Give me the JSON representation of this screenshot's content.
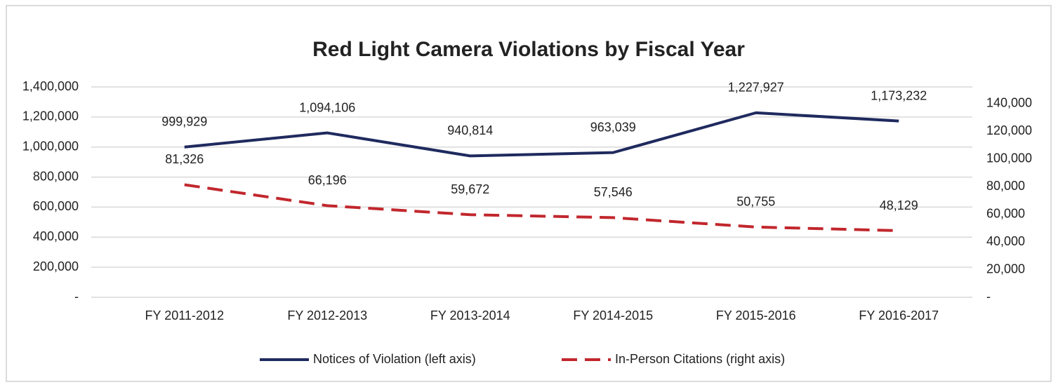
{
  "chart_data": {
    "type": "line",
    "title": "Red Light Camera Violations by Fiscal Year",
    "categories": [
      "FY 2011-2012",
      "FY 2012-2013",
      "FY 2013-2014",
      "FY 2014-2015",
      "FY 2015-2016",
      "FY 2016-2017"
    ],
    "series": [
      {
        "name": "Notices of Violation (left axis)",
        "color": "#1f2a5e",
        "dash": false,
        "values": [
          999929,
          1094106,
          940814,
          963039,
          1227927,
          1173232
        ],
        "value_labels": [
          "999,929",
          "1,094,106",
          "940,814",
          "963,039",
          "1,227,927",
          "1,173,232"
        ]
      },
      {
        "name": "In-Person Citations (right axis)",
        "color": "#c1272d",
        "dash": true,
        "axis": "y2",
        "values": [
          81326,
          66196,
          59672,
          57546,
          50755,
          48129
        ],
        "value_labels": [
          "81,326",
          "66,196",
          "59,672",
          "57,546",
          "50,755",
          "48,129"
        ]
      }
    ],
    "ylim": [
      0,
      1400000
    ],
    "yticks": [
      {
        "value": 0,
        "label": "-"
      },
      {
        "value": 200000,
        "label": "200,000"
      },
      {
        "value": 400000,
        "label": "400,000"
      },
      {
        "value": 600000,
        "label": "600,000"
      },
      {
        "value": 800000,
        "label": "800,000"
      },
      {
        "value": 1000000,
        "label": "1,000,000"
      },
      {
        "value": 1200000,
        "label": "1,200,000"
      },
      {
        "value": 1400000,
        "label": "1,400,000"
      }
    ],
    "y2lim": [
      0,
      152000
    ],
    "y2ticks": [
      {
        "value": 0,
        "label": "-"
      },
      {
        "value": 20000,
        "label": "20,000"
      },
      {
        "value": 40000,
        "label": "40,000"
      },
      {
        "value": 60000,
        "label": "60,000"
      },
      {
        "value": 80000,
        "label": "80,000"
      },
      {
        "value": 100000,
        "label": "100,000"
      },
      {
        "value": 120000,
        "label": "120,000"
      },
      {
        "value": 140000,
        "label": "140,000"
      }
    ],
    "grid": true,
    "legend": "bottom"
  }
}
